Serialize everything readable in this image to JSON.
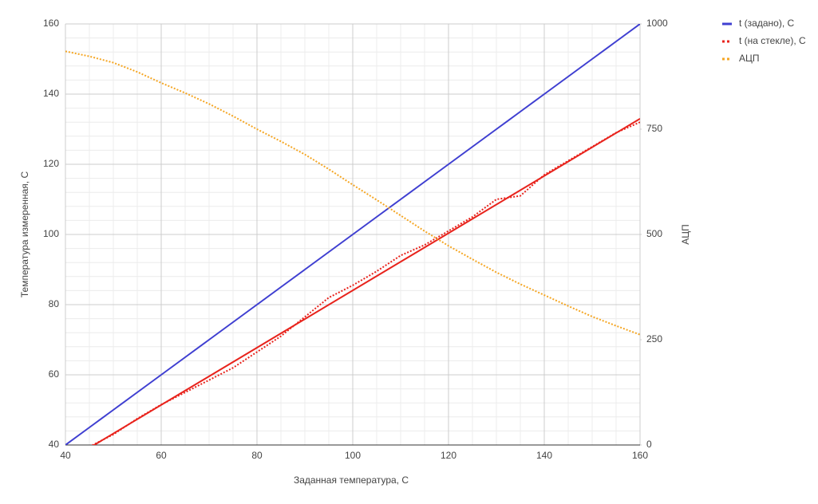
{
  "chart_data": {
    "type": "line",
    "xlabel": "Заданная температура, С",
    "ylabel": "Температура измеренная, С",
    "y2label": "АЦП",
    "x": [
      40,
      45,
      50,
      55,
      60,
      65,
      70,
      75,
      80,
      85,
      90,
      95,
      100,
      105,
      110,
      115,
      120,
      125,
      130,
      135,
      140,
      145,
      150,
      155,
      160
    ],
    "series": [
      {
        "name": "t (задано), С",
        "color": "#3f3fd1",
        "line_style": "solid",
        "values": [
          40,
          45,
          50,
          55,
          60,
          65,
          70,
          75,
          80,
          85,
          90,
          95,
          100,
          105,
          110,
          115,
          120,
          125,
          130,
          135,
          140,
          145,
          150,
          155,
          160
        ]
      },
      {
        "name": "t (на стекле), С",
        "color": "#e8231c",
        "line_style": "dotted",
        "values": [
          null,
          39.5,
          43,
          47.5,
          51.5,
          55,
          58.5,
          62,
          66.5,
          71,
          76.5,
          82,
          85.5,
          89.5,
          94,
          97,
          101,
          105,
          110,
          111,
          117,
          121,
          125,
          129,
          132
        ]
      },
      {
        "name": "АЦП",
        "color": "#f5a623",
        "line_style": "dotted",
        "axis": "y2",
        "values": [
          935,
          923,
          908,
          886,
          860,
          836,
          810,
          781,
          750,
          721,
          690,
          655,
          618,
          582,
          545,
          508,
          473,
          441,
          410,
          382,
          356,
          330,
          305,
          283,
          262
        ]
      }
    ],
    "trendline": {
      "color": "#e8231c",
      "x": [
        40,
        160
      ],
      "values": [
        35.1,
        133
      ]
    },
    "xlim": [
      40,
      160
    ],
    "xticks": [
      40,
      60,
      80,
      100,
      120,
      140,
      160
    ],
    "ylim": [
      40,
      160
    ],
    "yticks": [
      40,
      60,
      80,
      100,
      120,
      140,
      160
    ],
    "y2lim": [
      0,
      1000
    ],
    "y2ticks": [
      0,
      250,
      500,
      750,
      1000
    ],
    "grid": true,
    "legend": "right"
  }
}
